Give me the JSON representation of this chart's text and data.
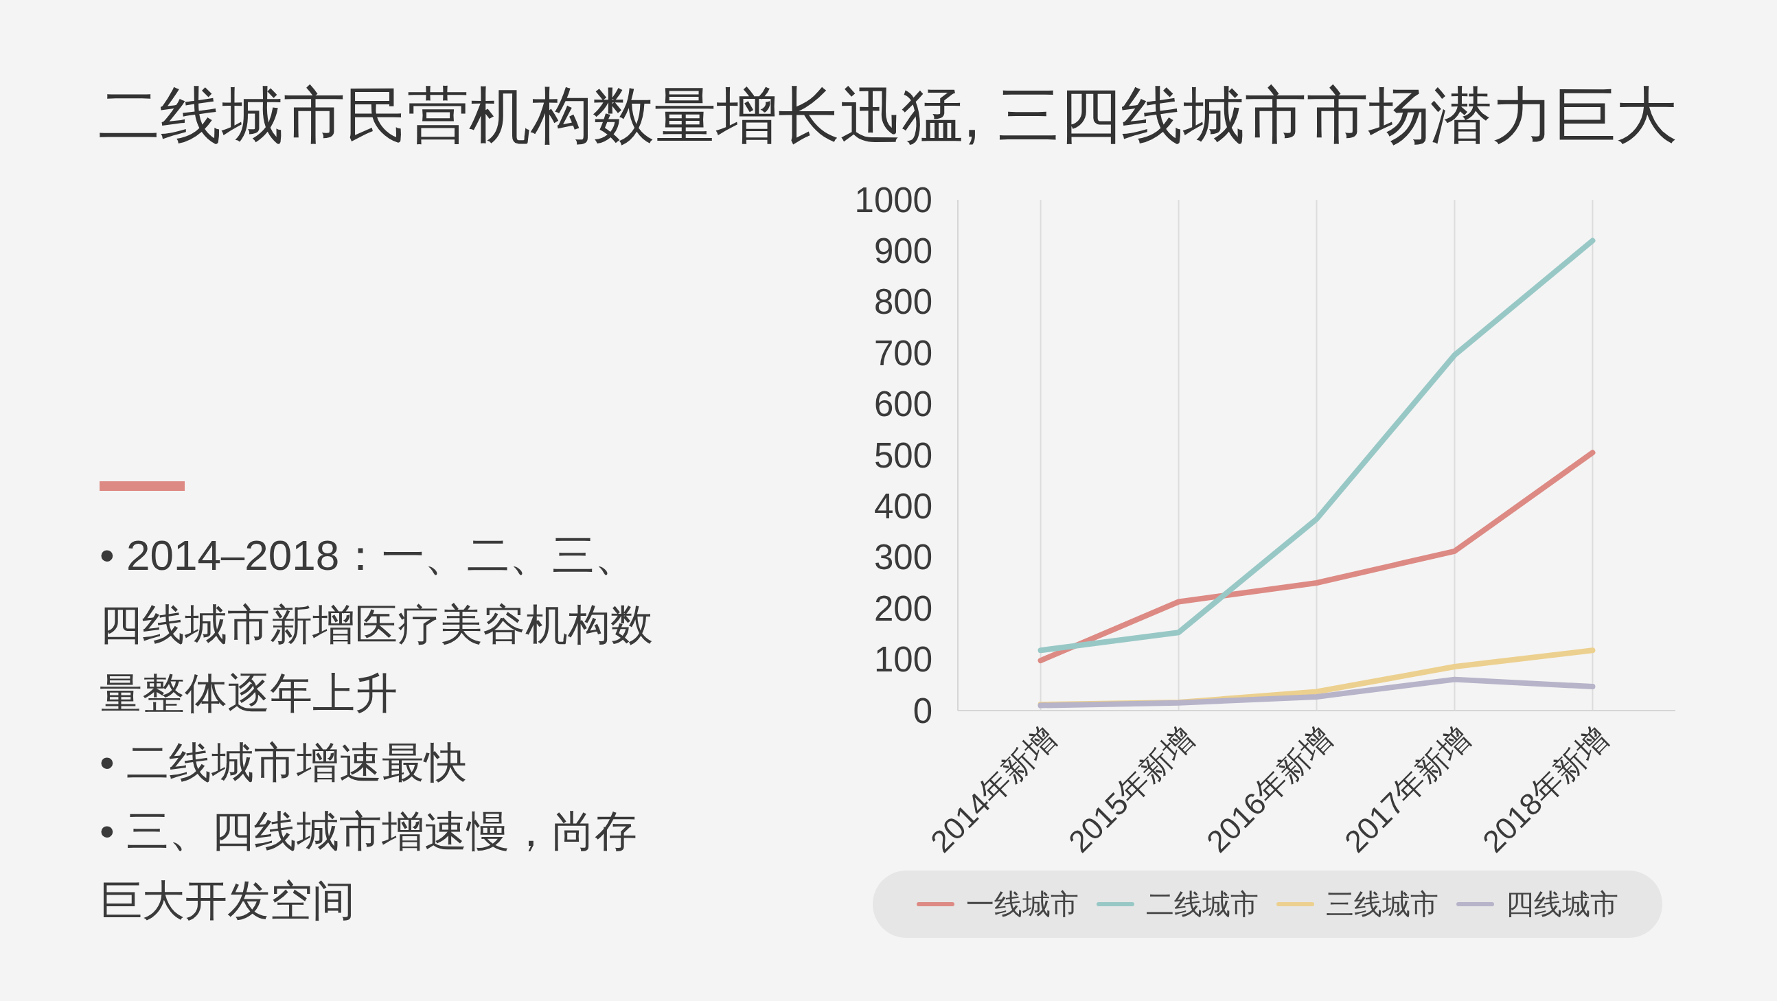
{
  "chart_data": {
    "type": "line",
    "title": "二线城市民营机构数量增长迅猛, 三四线城市市场潜力巨大",
    "annotations": [
      "• 2014–2018：一、二、三、四线城市新增医疗美容机构数量整体逐年上升",
      "• 二线城市增速最快",
      "• 三、四线城市增速慢，尚存巨大开发空间"
    ],
    "categories": [
      "2014年新增",
      "2015年新增",
      "2016年新增",
      "2017年新增",
      "2018年新增"
    ],
    "series": [
      {
        "name": "一线城市",
        "color": "#dd8a84",
        "values": [
          98,
          213,
          250,
          312,
          505
        ]
      },
      {
        "name": "二线城市",
        "color": "#98c8c6",
        "values": [
          118,
          153,
          375,
          696,
          920
        ]
      },
      {
        "name": "三线城市",
        "color": "#ecd08f",
        "values": [
          12,
          16,
          37,
          86,
          118
        ]
      },
      {
        "name": "四线城市",
        "color": "#b7b3c9",
        "values": [
          10,
          15,
          27,
          61,
          47
        ]
      }
    ],
    "ylim": [
      0,
      1000
    ],
    "yticks": [
      0,
      100,
      200,
      300,
      400,
      500,
      600,
      700,
      800,
      900,
      1000
    ],
    "grid": "x",
    "legend": "bottom"
  }
}
